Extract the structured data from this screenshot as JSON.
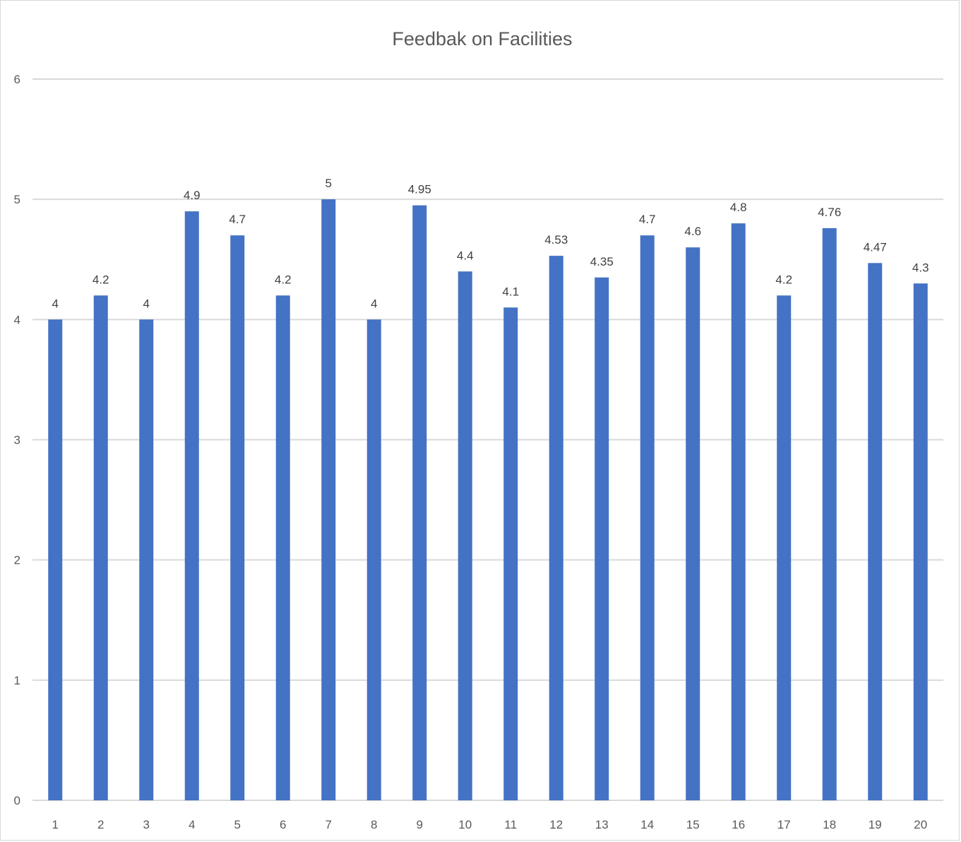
{
  "chart_data": {
    "type": "bar",
    "title": "Feedbak on Facilities",
    "xlabel": "",
    "ylabel": "",
    "categories": [
      "1",
      "2",
      "3",
      "4",
      "5",
      "6",
      "7",
      "8",
      "9",
      "10",
      "11",
      "12",
      "13",
      "14",
      "15",
      "16",
      "17",
      "18",
      "19",
      "20"
    ],
    "values": [
      4,
      4.2,
      4,
      4.9,
      4.7,
      4.2,
      5,
      4,
      4.95,
      4.4,
      4.1,
      4.53,
      4.35,
      4.7,
      4.6,
      4.8,
      4.2,
      4.76,
      4.47,
      4.3
    ],
    "data_labels": [
      "4",
      "4.2",
      "4",
      "4.9",
      "4.7",
      "4.2",
      "5",
      "4",
      "4.95",
      "4.4",
      "4.1",
      "4.53",
      "4.35",
      "4.7",
      "4.6",
      "4.8",
      "4.2",
      "4.76",
      "4.47",
      "4.3"
    ],
    "y_ticks": [
      "0",
      "1",
      "2",
      "3",
      "4",
      "5",
      "6"
    ],
    "ylim": [
      0,
      6
    ],
    "grid": true,
    "legend": "none",
    "bar_color": "#4472C4",
    "grid_color": "#d9d9d9"
  }
}
